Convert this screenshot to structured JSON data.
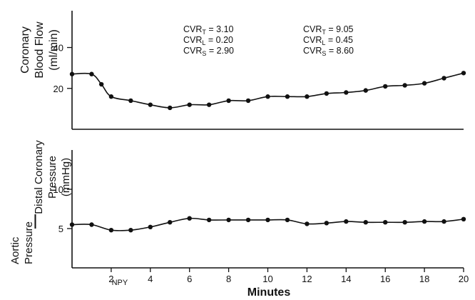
{
  "chart_data": [
    {
      "type": "line",
      "title": "",
      "xlabel": "",
      "ylabel_lines": [
        "Coronary",
        "Blood Flow",
        "(ml/min)"
      ],
      "xlim": [
        0,
        20
      ],
      "ylim": [
        0,
        58
      ],
      "yticks": [
        20,
        40
      ],
      "grid": false,
      "annotations": [
        {
          "lines": [
            "CVR_T = 3.10",
            "CVR_L = 0.20",
            "CVR_S = 2.90"
          ],
          "rows": [
            {
              "sym": "CVR",
              "sub": "T",
              "val": "3.10"
            },
            {
              "sym": "CVR",
              "sub": "L",
              "val": "0.20"
            },
            {
              "sym": "CVR",
              "sub": "S",
              "val": "2.90"
            }
          ]
        },
        {
          "lines": [
            "CVR_T = 9.05",
            "CVR_L = 0.45",
            "CVR_S = 8.60"
          ],
          "rows": [
            {
              "sym": "CVR",
              "sub": "T",
              "val": "9.05"
            },
            {
              "sym": "CVR",
              "sub": "L",
              "val": "0.45"
            },
            {
              "sym": "CVR",
              "sub": "S",
              "val": "8.60"
            }
          ]
        }
      ],
      "series": [
        {
          "x": [
            0,
            1,
            1.5,
            2,
            3,
            4,
            5,
            6,
            7,
            8,
            9,
            10,
            11,
            12,
            13,
            14,
            15,
            16,
            17,
            18,
            19,
            20
          ],
          "y": [
            27,
            27,
            22,
            16,
            14,
            12,
            10.5,
            12,
            12,
            14,
            14,
            16,
            16,
            16,
            17.5,
            18,
            19,
            21,
            21.5,
            22.5,
            25,
            27.5
          ]
        }
      ]
    },
    {
      "type": "line",
      "title": "",
      "xlabel": "Minutes",
      "ylabel_left": [
        "Aortic",
        "Pressure"
      ],
      "ylabel_dash": "—",
      "ylabel_right": [
        "Distal Coronary",
        "Pressure",
        "(mmHg)"
      ],
      "xlim": [
        0,
        20
      ],
      "ylim": [
        0,
        15
      ],
      "xticks": [
        2,
        4,
        6,
        8,
        10,
        12,
        14,
        16,
        18,
        20
      ],
      "yticks": [
        5,
        10
      ],
      "grid": false,
      "marker_label": "NPY",
      "marker_x": 2,
      "series": [
        {
          "x": [
            0,
            1,
            2,
            3,
            4,
            5,
            6,
            7,
            8,
            9,
            10,
            11,
            12,
            13,
            14,
            15,
            16,
            17,
            18,
            19,
            20
          ],
          "y": [
            5.5,
            5.5,
            4.8,
            4.8,
            5.2,
            5.8,
            6.3,
            6.1,
            6.1,
            6.1,
            6.1,
            6.1,
            5.6,
            5.7,
            5.9,
            5.8,
            5.8,
            5.8,
            5.9,
            5.9,
            6.2
          ]
        }
      ]
    }
  ]
}
